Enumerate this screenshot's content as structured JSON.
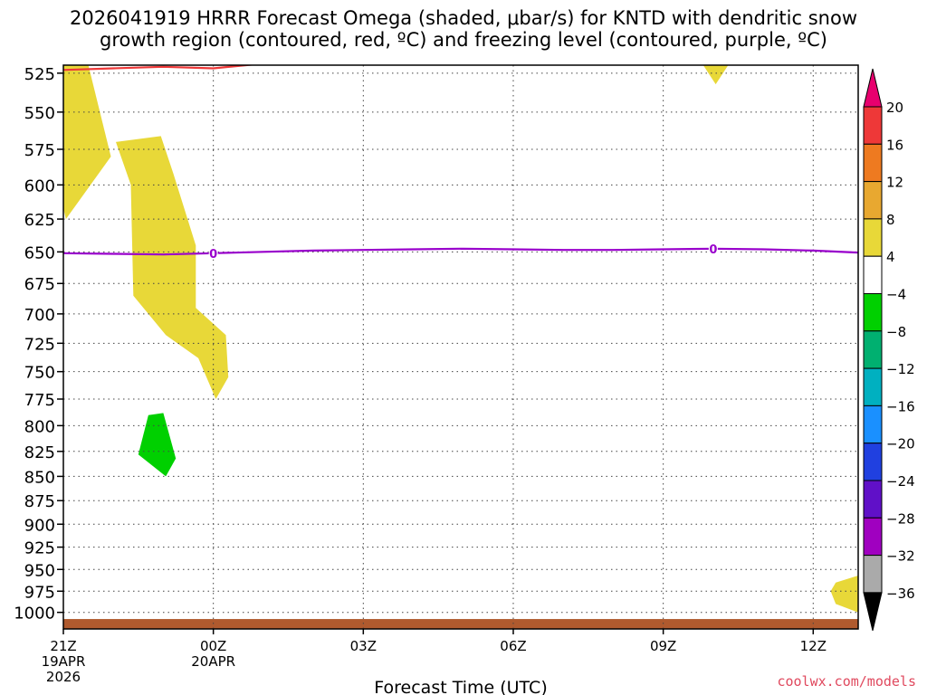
{
  "title_line1": "2026041919 HRRR Forecast Omega (shaded, μbar/s) for KNTD with dendritic snow",
  "title_line2": "growth region (contoured, red, ºC) and freezing level (contoured, purple, ºC)",
  "credit": "coolwx.com/models",
  "chart_data": {
    "type": "contour",
    "xlabel": "Forecast Time (UTC)",
    "ylabel": "",
    "xlim": [
      -3.0,
      12.9
    ],
    "ylim": [
      1020,
      520
    ],
    "y_scale": "log-pressure",
    "y_ticks": [
      525,
      550,
      575,
      600,
      625,
      650,
      675,
      700,
      725,
      750,
      775,
      800,
      825,
      850,
      875,
      900,
      925,
      950,
      975,
      1000
    ],
    "x_ticks": [
      {
        "x": -3,
        "label": [
          "21Z",
          "19APR",
          "2026"
        ]
      },
      {
        "x": 0,
        "label": [
          "00Z",
          "20APR"
        ]
      },
      {
        "x": 3,
        "label": [
          "03Z"
        ]
      },
      {
        "x": 6,
        "label": [
          "06Z"
        ]
      },
      {
        "x": 9,
        "label": [
          "09Z"
        ]
      },
      {
        "x": 12,
        "label": [
          "12Z"
        ]
      }
    ],
    "grid": true,
    "colorbar": {
      "labels": [
        "20",
        "16",
        "12",
        "8",
        "4",
        "−4",
        "−8",
        "−12",
        "−16",
        "−20",
        "−24",
        "−28",
        "−32",
        "−36"
      ],
      "colors": [
        "#ee3838",
        "#ee7a20",
        "#e8a830",
        "#e8d838",
        "#ffffff",
        "#00d000",
        "#00b070",
        "#00b0c0",
        "#1a90ff",
        "#2040e0",
        "#6010c8",
        "#a000c0",
        "#aaaaaa"
      ],
      "top_arrow_color": "#e8006e",
      "bottom_arrow_color": "#000000"
    },
    "omega_regions": [
      {
        "value_range": "4 to 8",
        "color": "#e8d838",
        "points": [
          [
            -3.45,
            520
          ],
          [
            -2.5,
            520
          ],
          [
            -2.05,
            580
          ],
          [
            -2.95,
            625
          ],
          [
            -3.5,
            542
          ]
        ]
      },
      {
        "value_range": "4 to 8",
        "color": "#e8d838",
        "points": [
          [
            -1.95,
            570
          ],
          [
            -1.05,
            566
          ],
          [
            -0.8,
            592
          ],
          [
            -0.35,
            645
          ],
          [
            -0.35,
            695
          ],
          [
            0.25,
            718
          ],
          [
            0.3,
            755
          ],
          [
            0.05,
            775
          ],
          [
            -0.3,
            738
          ],
          [
            -0.95,
            718
          ],
          [
            -1.6,
            685
          ],
          [
            -1.65,
            600
          ]
        ]
      },
      {
        "value_range": "4 to 8",
        "color": "#e8d838",
        "points": [
          [
            9.8,
            520
          ],
          [
            10.3,
            520
          ],
          [
            10.05,
            532
          ]
        ]
      },
      {
        "value_range": "4 to 8",
        "color": "#e8d838",
        "points": [
          [
            12.45,
            965
          ],
          [
            12.9,
            957
          ],
          [
            12.9,
            1000
          ],
          [
            12.45,
            990
          ],
          [
            12.35,
            975
          ]
        ]
      },
      {
        "value_range": "-8 to -4",
        "color": "#00d000",
        "points": [
          [
            -1.3,
            790
          ],
          [
            -1.0,
            788
          ],
          [
            -0.75,
            832
          ],
          [
            -0.95,
            850
          ],
          [
            -1.5,
            828
          ]
        ]
      }
    ],
    "contours": [
      {
        "field": "dendritic snow growth region",
        "color": "#ee3838",
        "points": [
          [
            -3.0,
            523
          ],
          [
            -2.0,
            522
          ],
          [
            -1.0,
            521
          ],
          [
            0.0,
            522
          ],
          [
            1.0,
            519
          ],
          [
            2.5,
            514
          ]
        ]
      },
      {
        "field": "freezing level",
        "color": "#9900cc",
        "label": "0",
        "points": [
          [
            -3.0,
            651
          ],
          [
            -2.0,
            651.5
          ],
          [
            -1.0,
            652
          ],
          [
            0.0,
            651
          ],
          [
            1.0,
            650
          ],
          [
            2.0,
            649
          ],
          [
            3.0,
            648.5
          ],
          [
            4.0,
            648
          ],
          [
            5.0,
            647.5
          ],
          [
            6.0,
            648
          ],
          [
            7.0,
            648.5
          ],
          [
            8.0,
            648.5
          ],
          [
            9.0,
            648
          ],
          [
            10.0,
            647.5
          ],
          [
            11.0,
            648
          ],
          [
            12.0,
            649
          ],
          [
            12.9,
            650.5
          ]
        ],
        "label_positions": [
          [
            0.0,
            651
          ],
          [
            10.0,
            647.5
          ]
        ]
      }
    ],
    "ground_layer": {
      "color": "#b05a2e",
      "pressure_top": 1008
    }
  }
}
